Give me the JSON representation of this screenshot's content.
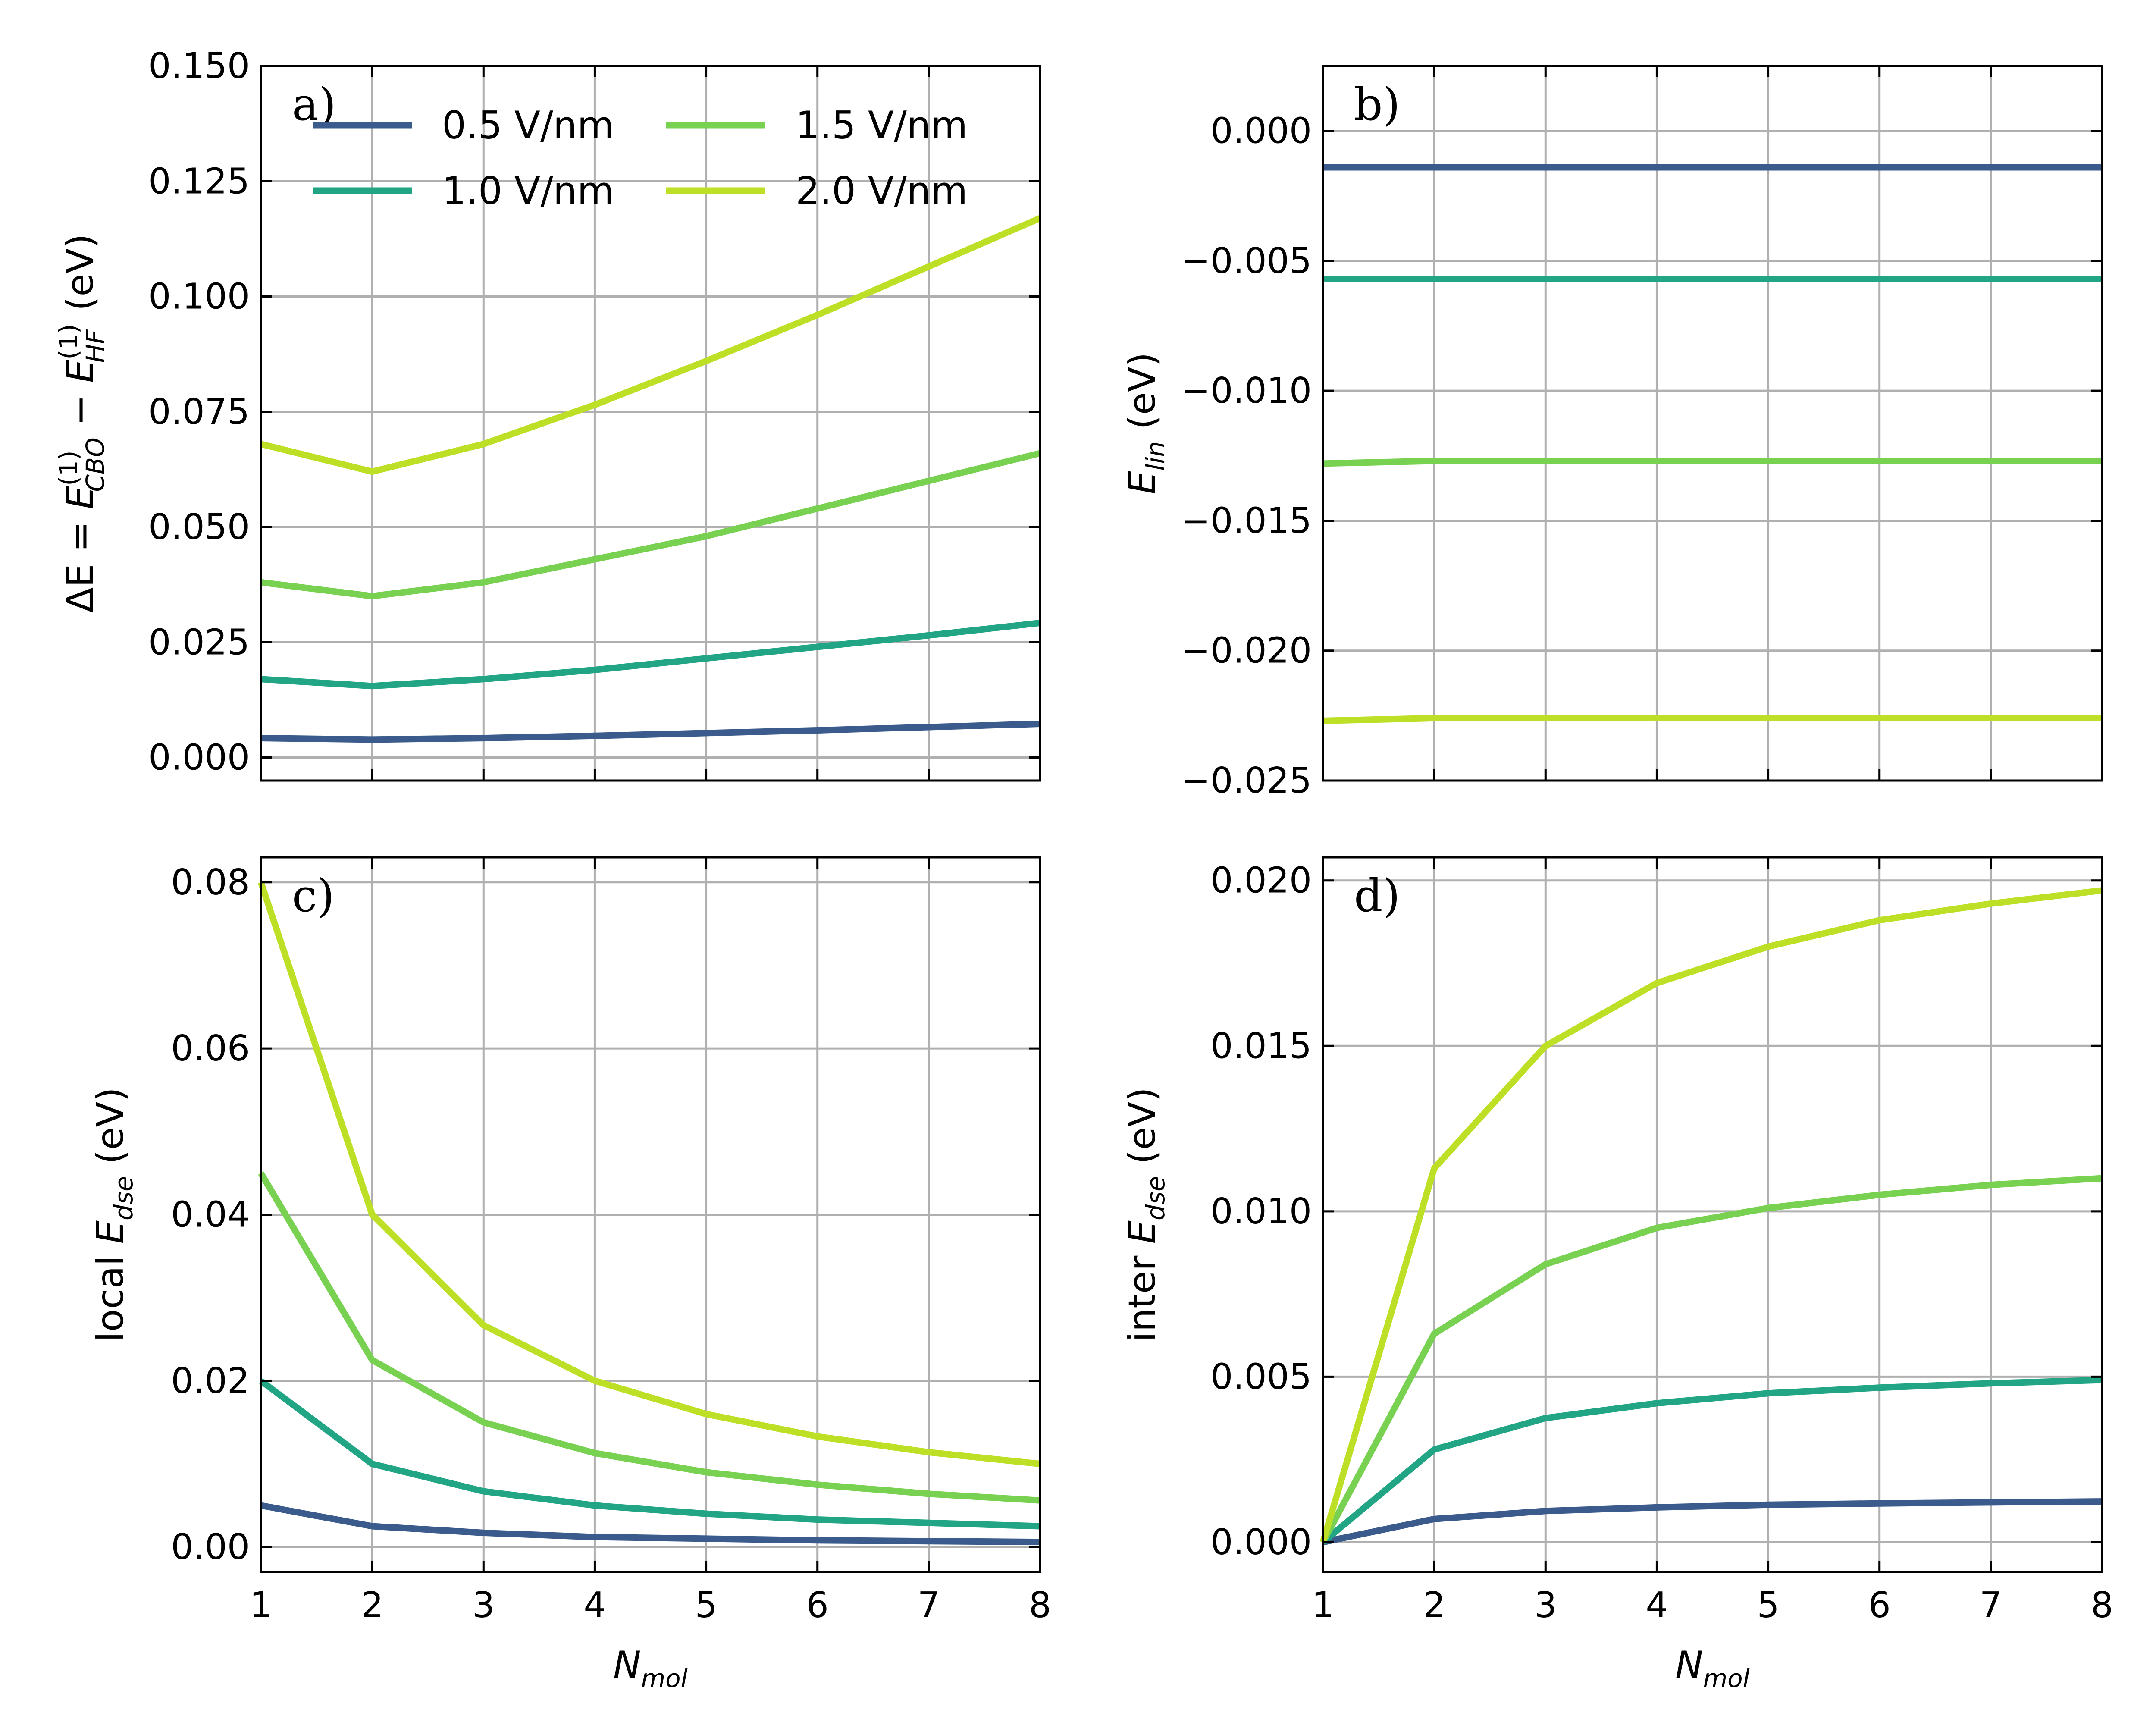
{
  "colors": {
    "0.5 V/nm": "#3b5b8c",
    "1.0 V/nm": "#22a584",
    "1.5 V/nm": "#79d151",
    "2.0 V/nm": "#bddf26"
  },
  "legend": {
    "entries": [
      "0.5 V/nm",
      "1.0 V/nm",
      "1.5 V/nm",
      "2.0 V/nm"
    ]
  },
  "chart_data": [
    {
      "id": "a",
      "panel_label": "a)",
      "type": "line",
      "xlabel": "N_mol",
      "ylabel": "ΔE = E_CBO^(1) − E_HF^(1) (eV)",
      "xlim": [
        1,
        8
      ],
      "ylim": [
        -0.005,
        0.15
      ],
      "yticks": [
        0.0,
        0.025,
        0.05,
        0.075,
        0.1,
        0.125,
        0.15
      ],
      "ytick_labels": [
        "0.000",
        "0.025",
        "0.050",
        "0.075",
        "0.100",
        "0.125",
        "0.150"
      ],
      "xticks": [
        1,
        2,
        3,
        4,
        5,
        6,
        7,
        8
      ],
      "show_xtick_labels": false,
      "x": [
        1,
        2,
        3,
        4,
        5,
        6,
        7,
        8
      ],
      "series": [
        {
          "name": "0.5 V/nm",
          "values": [
            0.0042,
            0.0039,
            0.0042,
            0.0047,
            0.0053,
            0.0059,
            0.0066,
            0.0073
          ]
        },
        {
          "name": "1.0 V/nm",
          "values": [
            0.017,
            0.0155,
            0.017,
            0.019,
            0.0215,
            0.024,
            0.0265,
            0.0292
          ]
        },
        {
          "name": "1.5 V/nm",
          "values": [
            0.038,
            0.035,
            0.038,
            0.043,
            0.048,
            0.054,
            0.06,
            0.066
          ]
        },
        {
          "name": "2.0 V/nm",
          "values": [
            0.068,
            0.062,
            0.068,
            0.0765,
            0.086,
            0.096,
            0.1065,
            0.117
          ]
        }
      ]
    },
    {
      "id": "b",
      "panel_label": "b)",
      "type": "line",
      "xlabel": "N_mol",
      "ylabel": "E_lin (eV)",
      "xlim": [
        1,
        8
      ],
      "ylim": [
        -0.025,
        0.0025
      ],
      "yticks": [
        -0.025,
        -0.02,
        -0.015,
        -0.01,
        -0.005,
        0.0
      ],
      "ytick_labels": [
        "−0.025",
        "−0.020",
        "−0.015",
        "−0.010",
        "−0.005",
        "0.000"
      ],
      "xticks": [
        1,
        2,
        3,
        4,
        5,
        6,
        7,
        8
      ],
      "show_xtick_labels": false,
      "x": [
        1,
        2,
        3,
        4,
        5,
        6,
        7,
        8
      ],
      "series": [
        {
          "name": "0.5 V/nm",
          "values": [
            -0.0014,
            -0.0014,
            -0.0014,
            -0.0014,
            -0.0014,
            -0.0014,
            -0.0014,
            -0.0014
          ]
        },
        {
          "name": "1.0 V/nm",
          "values": [
            -0.0057,
            -0.0057,
            -0.0057,
            -0.0057,
            -0.0057,
            -0.0057,
            -0.0057,
            -0.0057
          ]
        },
        {
          "name": "1.5 V/nm",
          "values": [
            -0.0128,
            -0.0127,
            -0.0127,
            -0.0127,
            -0.0127,
            -0.0127,
            -0.0127,
            -0.0127
          ]
        },
        {
          "name": "2.0 V/nm",
          "values": [
            -0.0227,
            -0.0226,
            -0.0226,
            -0.0226,
            -0.0226,
            -0.0226,
            -0.0226,
            -0.0226
          ]
        }
      ]
    },
    {
      "id": "c",
      "panel_label": "c)",
      "type": "line",
      "xlabel": "N_mol",
      "ylabel": "local E_dse (eV)",
      "xlim": [
        1,
        8
      ],
      "ylim": [
        -0.003,
        0.083
      ],
      "yticks": [
        0.0,
        0.02,
        0.04,
        0.06,
        0.08
      ],
      "ytick_labels": [
        "0.00",
        "0.02",
        "0.04",
        "0.06",
        "0.08"
      ],
      "xticks": [
        1,
        2,
        3,
        4,
        5,
        6,
        7,
        8
      ],
      "show_xtick_labels": true,
      "x": [
        1,
        2,
        3,
        4,
        5,
        6,
        7,
        8
      ],
      "series": [
        {
          "name": "0.5 V/nm",
          "values": [
            0.005,
            0.0025,
            0.0017,
            0.0012,
            0.001,
            0.0008,
            0.0007,
            0.0006
          ]
        },
        {
          "name": "1.0 V/nm",
          "values": [
            0.02,
            0.01,
            0.0067,
            0.005,
            0.004,
            0.0033,
            0.0029,
            0.0025
          ]
        },
        {
          "name": "1.5 V/nm",
          "values": [
            0.045,
            0.0225,
            0.015,
            0.0113,
            0.009,
            0.0075,
            0.0064,
            0.0056
          ]
        },
        {
          "name": "2.0 V/nm",
          "values": [
            0.08,
            0.04,
            0.0267,
            0.02,
            0.016,
            0.0133,
            0.0114,
            0.01
          ]
        }
      ]
    },
    {
      "id": "d",
      "panel_label": "d)",
      "type": "line",
      "xlabel": "N_mol",
      "ylabel": "inter E_dse (eV)",
      "xlim": [
        1,
        8
      ],
      "ylim": [
        -0.0009,
        0.0207
      ],
      "yticks": [
        0.0,
        0.005,
        0.01,
        0.015,
        0.02
      ],
      "ytick_labels": [
        "0.000",
        "0.005",
        "0.010",
        "0.015",
        "0.020"
      ],
      "xticks": [
        1,
        2,
        3,
        4,
        5,
        6,
        7,
        8
      ],
      "show_xtick_labels": true,
      "x": [
        1,
        2,
        3,
        4,
        5,
        6,
        7,
        8
      ],
      "series": [
        {
          "name": "0.5 V/nm",
          "values": [
            0.0,
            0.0007,
            0.00094,
            0.00105,
            0.00113,
            0.00117,
            0.0012,
            0.00123
          ]
        },
        {
          "name": "1.0 V/nm",
          "values": [
            0.0,
            0.0028,
            0.00375,
            0.0042,
            0.0045,
            0.00467,
            0.0048,
            0.0049
          ]
        },
        {
          "name": "1.5 V/nm",
          "values": [
            0.0,
            0.0063,
            0.0084,
            0.0095,
            0.0101,
            0.0105,
            0.0108,
            0.011
          ]
        },
        {
          "name": "2.0 V/nm",
          "values": [
            0.0,
            0.0113,
            0.015,
            0.0169,
            0.018,
            0.0188,
            0.0193,
            0.0197
          ]
        }
      ]
    }
  ]
}
